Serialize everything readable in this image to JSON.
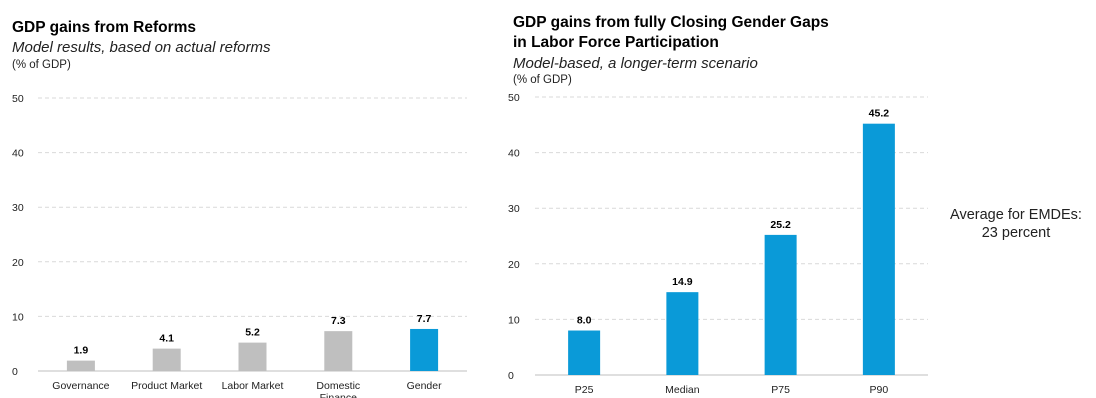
{
  "chart_data": [
    {
      "type": "bar",
      "title": "GDP gains from Reforms",
      "subtitle": "Model results, based on actual reforms",
      "ylabel": "(% of GDP)",
      "xlabel": "",
      "ylim": [
        0,
        50
      ],
      "yticks": [
        0,
        10,
        20,
        30,
        40,
        50
      ],
      "grid": true,
      "categories": [
        "Governance",
        "Product Market",
        "Labor Market",
        "Domestic Finance",
        "Gender"
      ],
      "values": [
        1.9,
        4.1,
        5.2,
        7.3,
        7.7
      ],
      "data_labels": [
        "1.9",
        "4.1",
        "5.2",
        "7.3",
        "7.7"
      ],
      "colors": [
        "#bfbfbf",
        "#bfbfbf",
        "#bfbfbf",
        "#bfbfbf",
        "#0a9ad8"
      ]
    },
    {
      "type": "bar",
      "title": "GDP gains from fully Closing Gender Gaps in Labor Force Participation",
      "title_lines": [
        "GDP gains from fully Closing Gender Gaps",
        "in Labor Force Participation"
      ],
      "subtitle": "Model-based, a longer-term scenario",
      "ylabel": "(% of GDP)",
      "xlabel": "",
      "ylim": [
        0,
        50
      ],
      "yticks": [
        0,
        10,
        20,
        30,
        40,
        50
      ],
      "grid": true,
      "categories": [
        "P25",
        "Median",
        "P75",
        "P90"
      ],
      "values": [
        8.0,
        14.9,
        25.2,
        45.2
      ],
      "data_labels": [
        "8.0",
        "14.9",
        "25.2",
        "45.2"
      ],
      "colors": [
        "#0a9ad8",
        "#0a9ad8",
        "#0a9ad8",
        "#0a9ad8"
      ]
    }
  ],
  "annotation": {
    "line1": "Average for EMDEs:",
    "line2": "23 percent"
  }
}
